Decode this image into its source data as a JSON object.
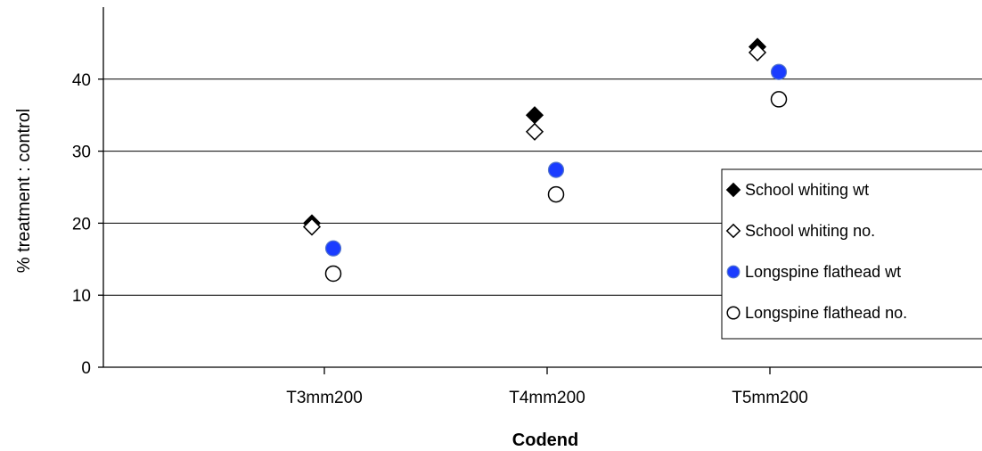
{
  "chart_data": {
    "type": "scatter",
    "title": "",
    "xlabel": "Codend",
    "ylabel": "% treatment : control",
    "categories": [
      "T3mm200",
      "T4mm200",
      "T5mm200"
    ],
    "ylim": [
      0,
      50
    ],
    "yticks": [
      0,
      10,
      20,
      30,
      40
    ],
    "grid": true,
    "legend_position": "right",
    "series": [
      {
        "name": "School whiting wt",
        "marker": "diamond-filled",
        "color": "#000000",
        "values": [
          20.0,
          35.0,
          44.5
        ]
      },
      {
        "name": "School whiting no.",
        "marker": "diamond-open",
        "color": "#000000",
        "values": [
          19.5,
          32.7,
          43.7
        ]
      },
      {
        "name": "Longspine flathead wt",
        "marker": "circle-filled",
        "color": "#1a3cff",
        "values": [
          16.5,
          27.4,
          41.0
        ]
      },
      {
        "name": "Longspine flathead no.",
        "marker": "circle-open",
        "color": "#000000",
        "values": [
          13.0,
          24.0,
          37.2
        ]
      }
    ]
  }
}
